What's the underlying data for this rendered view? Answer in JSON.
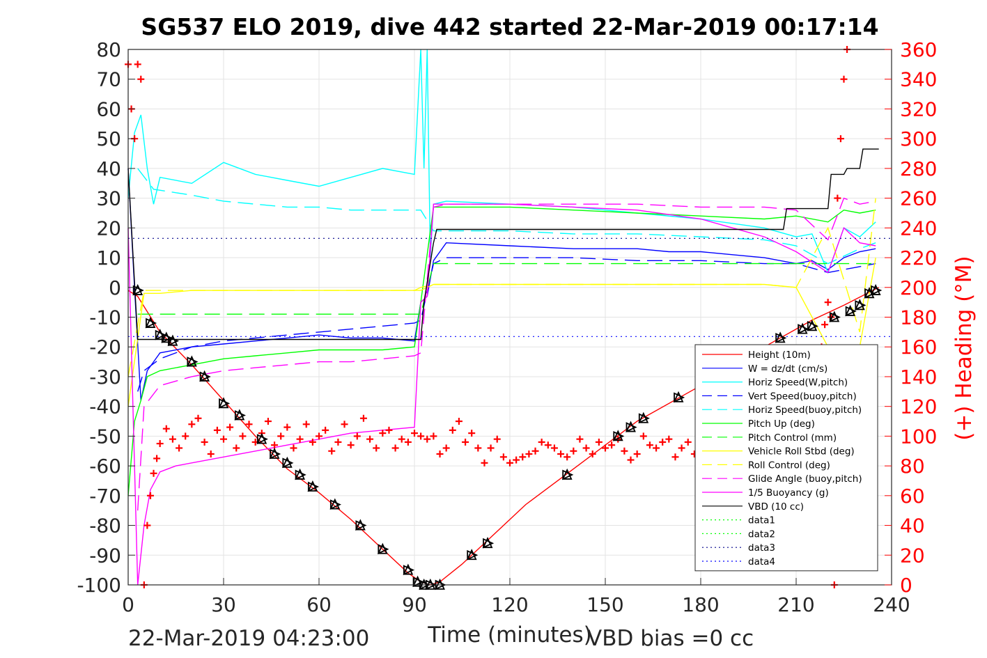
{
  "chart_data": {
    "type": "line",
    "title": "SG537 ELO 2019, dive 442 started 22-Mar-2019 00:17:14",
    "xlabel": "Time (minutes)",
    "ylabel": "",
    "y2label": "(+) Heading (°M)",
    "xlim": [
      0,
      240
    ],
    "ylim": [
      -100,
      80
    ],
    "y2lim": [
      0,
      360
    ],
    "x_ticks": [
      0,
      30,
      60,
      90,
      120,
      150,
      180,
      210,
      240
    ],
    "y_ticks": [
      80,
      70,
      60,
      50,
      40,
      30,
      20,
      10,
      0,
      -10,
      -20,
      -30,
      -40,
      -50,
      -60,
      -70,
      -80,
      -90,
      -100
    ],
    "y2_ticks": [
      360,
      340,
      320,
      300,
      280,
      260,
      240,
      220,
      200,
      180,
      160,
      140,
      120,
      100,
      80,
      60,
      40,
      20,
      0
    ],
    "grid": true,
    "legend_position": "lower-right",
    "footer_left": "22-Mar-2019 04:23:00",
    "footer_right": "VBD bias =0 cc",
    "colors": {
      "red": "#ff0000",
      "blue": "#0000ff",
      "cyan": "#00ffff",
      "green": "#00ff00",
      "yellow": "#ffff00",
      "magenta": "#ff00ff",
      "black": "#000000",
      "navy": "#00008b"
    },
    "series": [
      {
        "name": "Height (10m)",
        "color": "#ff0000",
        "style": "solid",
        "x": [
          0,
          3,
          10,
          20,
          30,
          40,
          50,
          60,
          70,
          80,
          88,
          92,
          95,
          98,
          105,
          115,
          125,
          140,
          160,
          180,
          200,
          215,
          225,
          236
        ],
        "y": [
          -1,
          -3,
          -15,
          -26,
          -38,
          -50,
          -61,
          -69,
          -78,
          -88,
          -96,
          -99,
          -100,
          -99,
          -93,
          -83,
          -73,
          -61,
          -45,
          -33,
          -20,
          -11,
          -6,
          0
        ]
      },
      {
        "name": "W = dz/dt (cm/s)",
        "color": "#0000ff",
        "style": "solid",
        "x": [
          0,
          2,
          4,
          6,
          10,
          20,
          30,
          40,
          50,
          60,
          70,
          80,
          90,
          92,
          94,
          96,
          100,
          120,
          140,
          150,
          160,
          170,
          180,
          190,
          200,
          210,
          215,
          220,
          225,
          230,
          235
        ],
        "y": [
          40,
          0,
          -38,
          -28,
          -22,
          -20,
          -19,
          -18,
          -17,
          -16,
          -17,
          -17,
          -18,
          -5,
          -3,
          9,
          15,
          14,
          13,
          13,
          13,
          12,
          12,
          11,
          10,
          8,
          9,
          6,
          10,
          12,
          13
        ]
      },
      {
        "name": "Horiz Speed(W,pitch)",
        "color": "#00ffff",
        "style": "solid",
        "x": [
          0,
          2,
          4,
          6,
          8,
          10,
          20,
          30,
          40,
          50,
          60,
          70,
          80,
          90,
          92,
          93,
          94,
          95,
          96,
          100,
          120,
          140,
          160,
          180,
          200,
          210,
          215,
          220,
          225,
          230,
          235
        ],
        "y": [
          30,
          52,
          58,
          40,
          28,
          37,
          35,
          42,
          38,
          36,
          34,
          37,
          40,
          38,
          95,
          40,
          95,
          10,
          28,
          29,
          28,
          27,
          25,
          23,
          20,
          17,
          18,
          5,
          20,
          17,
          22
        ]
      },
      {
        "name": "Vert Speed(buoy,pitch)",
        "color": "#0000ff",
        "style": "dashed",
        "x": [
          3,
          5,
          10,
          20,
          30,
          40,
          50,
          60,
          70,
          80,
          90,
          92,
          96,
          100,
          120,
          140,
          160,
          180,
          200,
          210,
          220,
          230,
          235
        ],
        "y": [
          -35,
          -28,
          -24,
          -20,
          -18,
          -17,
          -16,
          -15,
          -14,
          -13,
          -12,
          -11,
          8,
          10,
          10,
          10,
          9,
          9,
          8,
          8,
          5,
          7,
          8
        ]
      },
      {
        "name": "Horiz Speed(buoy,pitch)",
        "color": "#00ffff",
        "style": "dashed",
        "x": [
          3,
          8,
          20,
          30,
          40,
          50,
          60,
          70,
          80,
          90,
          92,
          96,
          100,
          120,
          140,
          160,
          180,
          200,
          210,
          220,
          230,
          235
        ],
        "y": [
          40,
          33,
          31,
          29,
          28,
          27,
          27,
          26,
          26,
          26,
          26,
          19,
          19,
          19,
          18,
          18,
          17,
          16,
          14,
          8,
          13,
          15
        ]
      },
      {
        "name": "Pitch Up (deg)",
        "color": "#00ff00",
        "style": "solid",
        "x": [
          0,
          2,
          4,
          6,
          10,
          20,
          30,
          40,
          50,
          60,
          70,
          80,
          90,
          92,
          96,
          100,
          120,
          140,
          160,
          180,
          200,
          210,
          220,
          225,
          230,
          235
        ],
        "y": [
          -70,
          -45,
          -38,
          -30,
          -28,
          -26,
          -24,
          -23,
          -22,
          -21,
          -21,
          -21,
          -20,
          -5,
          27,
          27,
          27,
          26,
          25,
          24,
          23,
          24,
          22,
          26,
          25,
          26
        ]
      },
      {
        "name": "Pitch Control (mm)",
        "color": "#00ff00",
        "style": "dashed",
        "x": [
          3,
          10,
          20,
          30,
          40,
          50,
          60,
          70,
          80,
          90,
          92,
          96,
          100,
          120,
          140,
          160,
          180,
          200,
          220,
          235
        ],
        "y": [
          -9,
          -9,
          -9,
          -9,
          -9,
          -9,
          -9,
          -9,
          -9,
          -9,
          -9,
          8,
          8,
          8,
          8,
          8,
          8,
          8,
          8,
          8
        ]
      },
      {
        "name": "Vehicle Roll Stbd (deg)",
        "color": "#ffff00",
        "style": "solid",
        "x": [
          0,
          5,
          10,
          20,
          30,
          40,
          50,
          60,
          70,
          80,
          90,
          92,
          96,
          100,
          120,
          140,
          160,
          180,
          200,
          210,
          220,
          230,
          235
        ],
        "y": [
          -40,
          -2,
          -2,
          -1,
          -1,
          -1,
          -1,
          -1,
          -1,
          -1,
          -1,
          -1,
          1,
          1,
          1,
          1,
          1,
          1,
          1,
          0,
          -20,
          -20,
          10
        ]
      },
      {
        "name": "Roll Control (deg)",
        "color": "#ffff00",
        "style": "dashed",
        "x": [
          0,
          5,
          10,
          20,
          30,
          40,
          50,
          60,
          70,
          80,
          90,
          92,
          96,
          100,
          120,
          140,
          160,
          180,
          200,
          210,
          220,
          230,
          235
        ],
        "y": [
          -30,
          -1,
          -1,
          -1,
          -1,
          -1,
          -1,
          -1,
          -1,
          -1,
          -1,
          0,
          1,
          1,
          1,
          1,
          1,
          1,
          1,
          0,
          20,
          -15,
          30
        ]
      },
      {
        "name": "Glide Angle (buoy,pitch)",
        "color": "#ff00ff",
        "style": "dashed",
        "x": [
          3,
          5,
          10,
          20,
          30,
          40,
          50,
          60,
          70,
          80,
          90,
          92,
          96,
          100,
          120,
          140,
          160,
          180,
          200,
          210,
          220,
          225,
          230,
          235
        ],
        "y": [
          -75,
          -40,
          -33,
          -30,
          -28,
          -27,
          -26,
          -25,
          -25,
          -24,
          -23,
          -22,
          27,
          28,
          28,
          28,
          28,
          27,
          27,
          26,
          16,
          30,
          28,
          29
        ]
      },
      {
        "name": "1/5 Buoyancy (g)",
        "color": "#ff00ff",
        "style": "solid",
        "x": [
          0,
          3,
          5,
          7,
          10,
          15,
          20,
          30,
          40,
          50,
          60,
          70,
          80,
          90,
          92,
          94,
          96,
          100,
          120,
          140,
          160,
          180,
          190,
          200,
          210,
          220,
          225,
          230,
          235
        ],
        "y": [
          20,
          -100,
          -80,
          -68,
          -62,
          -60,
          -59,
          -57,
          -55,
          -53,
          -51,
          -49,
          -48,
          -47,
          -5,
          -3,
          28,
          28,
          28,
          27,
          26,
          23,
          20,
          17,
          12,
          5,
          20,
          15,
          14
        ]
      },
      {
        "name": "VBD (10 cc)",
        "color": "#000000",
        "style": "solid",
        "x": [
          0,
          3,
          4,
          92,
          93,
          96,
          97,
          206,
          207,
          220,
          221,
          225,
          226,
          230,
          231,
          236
        ],
        "y": [
          40,
          -17.5,
          -17.5,
          -17.5,
          -5,
          15,
          19.5,
          19.5,
          26.5,
          26.5,
          38,
          38,
          40,
          40,
          46.5,
          46.5
        ]
      },
      {
        "name": "data1",
        "color": "#00ff00",
        "style": "dotted",
        "x": [],
        "y": []
      },
      {
        "name": "data2",
        "color": "#00ff00",
        "style": "dotted",
        "x": [],
        "y": []
      },
      {
        "name": "data3",
        "color": "#00008b",
        "style": "dotted",
        "x": [
          0,
          240
        ],
        "y": [
          16.5,
          16.5
        ]
      },
      {
        "name": "data4",
        "color": "#0000ff",
        "style": "dotted",
        "x": [
          0,
          240
        ],
        "y": [
          -16.5,
          -16.5
        ]
      }
    ],
    "heading_series": {
      "name": "(+) Heading (°M)",
      "marker": "+",
      "color": "#ff0000",
      "x": [
        0,
        1,
        2,
        3,
        4,
        5,
        6,
        7,
        8,
        9,
        10,
        12,
        14,
        16,
        18,
        20,
        22,
        24,
        26,
        28,
        30,
        32,
        34,
        36,
        38,
        40,
        42,
        44,
        46,
        48,
        50,
        52,
        54,
        56,
        58,
        60,
        62,
        64,
        66,
        68,
        70,
        72,
        74,
        76,
        78,
        80,
        82,
        84,
        86,
        88,
        90,
        92,
        94,
        96,
        98,
        100,
        102,
        104,
        106,
        108,
        110,
        112,
        114,
        116,
        118,
        120,
        122,
        124,
        126,
        128,
        130,
        132,
        134,
        136,
        138,
        140,
        142,
        144,
        146,
        148,
        150,
        152,
        154,
        156,
        158,
        160,
        162,
        164,
        166,
        168,
        170,
        172,
        174,
        176,
        178,
        180,
        182,
        184,
        186,
        188,
        190,
        192,
        194,
        196,
        198,
        200,
        202,
        204,
        206,
        208,
        210,
        212,
        214,
        216,
        218,
        219,
        220,
        221,
        222,
        223,
        224,
        225,
        226
      ],
      "y": [
        350,
        320,
        300,
        350,
        340,
        0,
        40,
        60,
        75,
        85,
        95,
        105,
        98,
        92,
        100,
        108,
        112,
        96,
        88,
        104,
        98,
        106,
        92,
        100,
        108,
        96,
        102,
        110,
        94,
        100,
        106,
        92,
        98,
        108,
        96,
        100,
        104,
        90,
        96,
        108,
        94,
        100,
        112,
        98,
        92,
        102,
        104,
        92,
        98,
        96,
        102,
        100,
        98,
        100,
        88,
        92,
        104,
        110,
        96,
        102,
        92,
        82,
        92,
        98,
        86,
        82,
        84,
        86,
        88,
        90,
        96,
        94,
        92,
        88,
        86,
        90,
        98,
        92,
        88,
        96,
        92,
        94,
        98,
        90,
        84,
        88,
        100,
        94,
        92,
        96,
        98,
        86,
        92,
        96,
        88,
        92,
        100,
        96,
        90,
        94,
        88,
        92,
        96,
        102,
        94,
        98,
        90,
        92,
        88,
        96,
        100,
        110,
        120,
        140,
        160,
        175,
        190,
        180,
        0,
        260,
        300,
        340,
        360
      ]
    },
    "depth_markers": {
      "marker": "triangle",
      "color": "#000000",
      "x": [
        3,
        7,
        10,
        12,
        14,
        20,
        24,
        30,
        35,
        42,
        46,
        50,
        54,
        58,
        65,
        73,
        80,
        88,
        91,
        93,
        95,
        98,
        108,
        113,
        138,
        154,
        158,
        162,
        173,
        205,
        212,
        215,
        222,
        227,
        230,
        233,
        235
      ],
      "y": [
        -1,
        -12,
        -16,
        -17,
        -18,
        -25,
        -30,
        -39,
        -43,
        -51,
        -56,
        -59,
        -63,
        -67,
        -73,
        -80,
        -88,
        -95,
        -99,
        -100,
        -100,
        -100,
        -90,
        -86,
        -63,
        -50,
        -47,
        -44,
        -37,
        -17,
        -14,
        -13,
        -10,
        -8,
        -6,
        -2,
        -1
      ]
    },
    "legend_entries": [
      "Height (10m)",
      "W = dz/dt (cm/s)",
      "Horiz Speed(W,pitch)",
      "Vert Speed(buoy,pitch)",
      "Horiz Speed(buoy,pitch)",
      "Pitch Up (deg)",
      "Pitch Control (mm)",
      "Vehicle Roll Stbd (deg)",
      "Roll Control (deg)",
      "Glide Angle (buoy,pitch)",
      "1/5 Buoyancy (g)",
      "VBD (10 cc)",
      "data1",
      "data2",
      "data3",
      "data4"
    ]
  }
}
